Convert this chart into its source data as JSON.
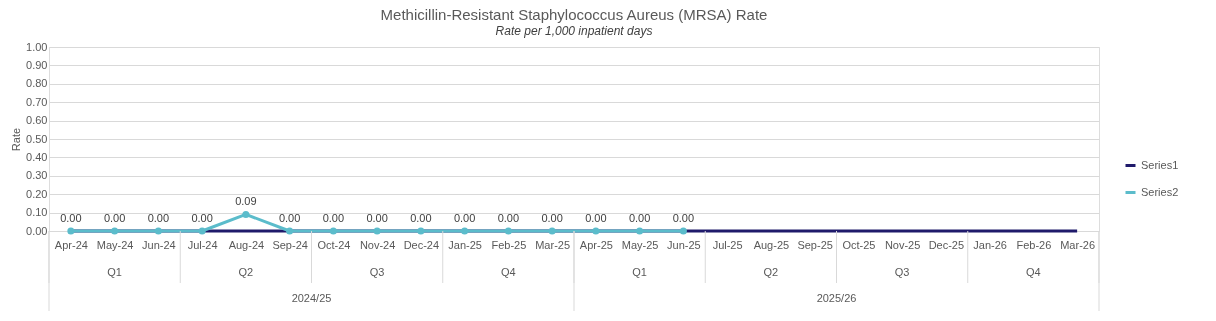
{
  "chart_data": {
    "type": "line",
    "title": "Methicillin-Resistant Staphylococcus Aureus (MRSA) Rate",
    "subtitle": "Rate per 1,000 inpatient days",
    "ylabel": "Rate",
    "categories": [
      "Apr-24",
      "May-24",
      "Jun-24",
      "Jul-24",
      "Aug-24",
      "Sep-24",
      "Oct-24",
      "Nov-24",
      "Dec-24",
      "Jan-25",
      "Feb-25",
      "Mar-25",
      "Apr-25",
      "May-25",
      "Jun-25",
      "Jul-25",
      "Aug-25",
      "Sep-25",
      "Oct-25",
      "Nov-25",
      "Dec-25",
      "Jan-26",
      "Feb-26",
      "Mar-26"
    ],
    "series": [
      {
        "name": "Series1",
        "color": "#1f1a6b",
        "marker": "none",
        "values": [
          0,
          0,
          0,
          0,
          0,
          0,
          0,
          0,
          0,
          0,
          0,
          0,
          0,
          0,
          0,
          0,
          0,
          0,
          0,
          0,
          0,
          0,
          0,
          0
        ]
      },
      {
        "name": "Series2",
        "color": "#5bbccb",
        "marker": "circle",
        "values": [
          0,
          0,
          0,
          0,
          0.09,
          0,
          0,
          0,
          0,
          0,
          0,
          0,
          0,
          0,
          0,
          null,
          null,
          null,
          null,
          null,
          null,
          null,
          null,
          null
        ],
        "value_labels": [
          "0.00",
          "0.00",
          "0.00",
          "0.00",
          "0.09",
          "0.00",
          "0.00",
          "0.00",
          "0.00",
          "0.00",
          "0.00",
          "0.00",
          "0.00",
          "0.00",
          "0.00",
          null,
          null,
          null,
          null,
          null,
          null,
          null,
          null,
          null
        ]
      }
    ],
    "annotations": [
      "Q1",
      "Q2",
      "Q3",
      "Q4",
      "Q1",
      "Q2",
      "Q3",
      "Q4",
      "2024/25",
      "2025/26"
    ],
    "ylim": [
      0,
      1
    ],
    "yticks": [
      {
        "value": 0,
        "label": "0.00"
      },
      {
        "value": 0.1,
        "label": "0.10"
      },
      {
        "value": 0.2,
        "label": "0.20"
      },
      {
        "value": 0.3,
        "label": "0.30"
      },
      {
        "value": 0.4,
        "label": "0.40"
      },
      {
        "value": 0.5,
        "label": "0.50"
      },
      {
        "value": 0.6,
        "label": "0.60"
      },
      {
        "value": 0.7,
        "label": "0.70"
      },
      {
        "value": 0.8,
        "label": "0.80"
      },
      {
        "value": 0.9,
        "label": "0.90"
      },
      {
        "value": 1,
        "label": "1.00"
      }
    ],
    "grid": "y",
    "legend": "right",
    "line_style": "solid"
  }
}
